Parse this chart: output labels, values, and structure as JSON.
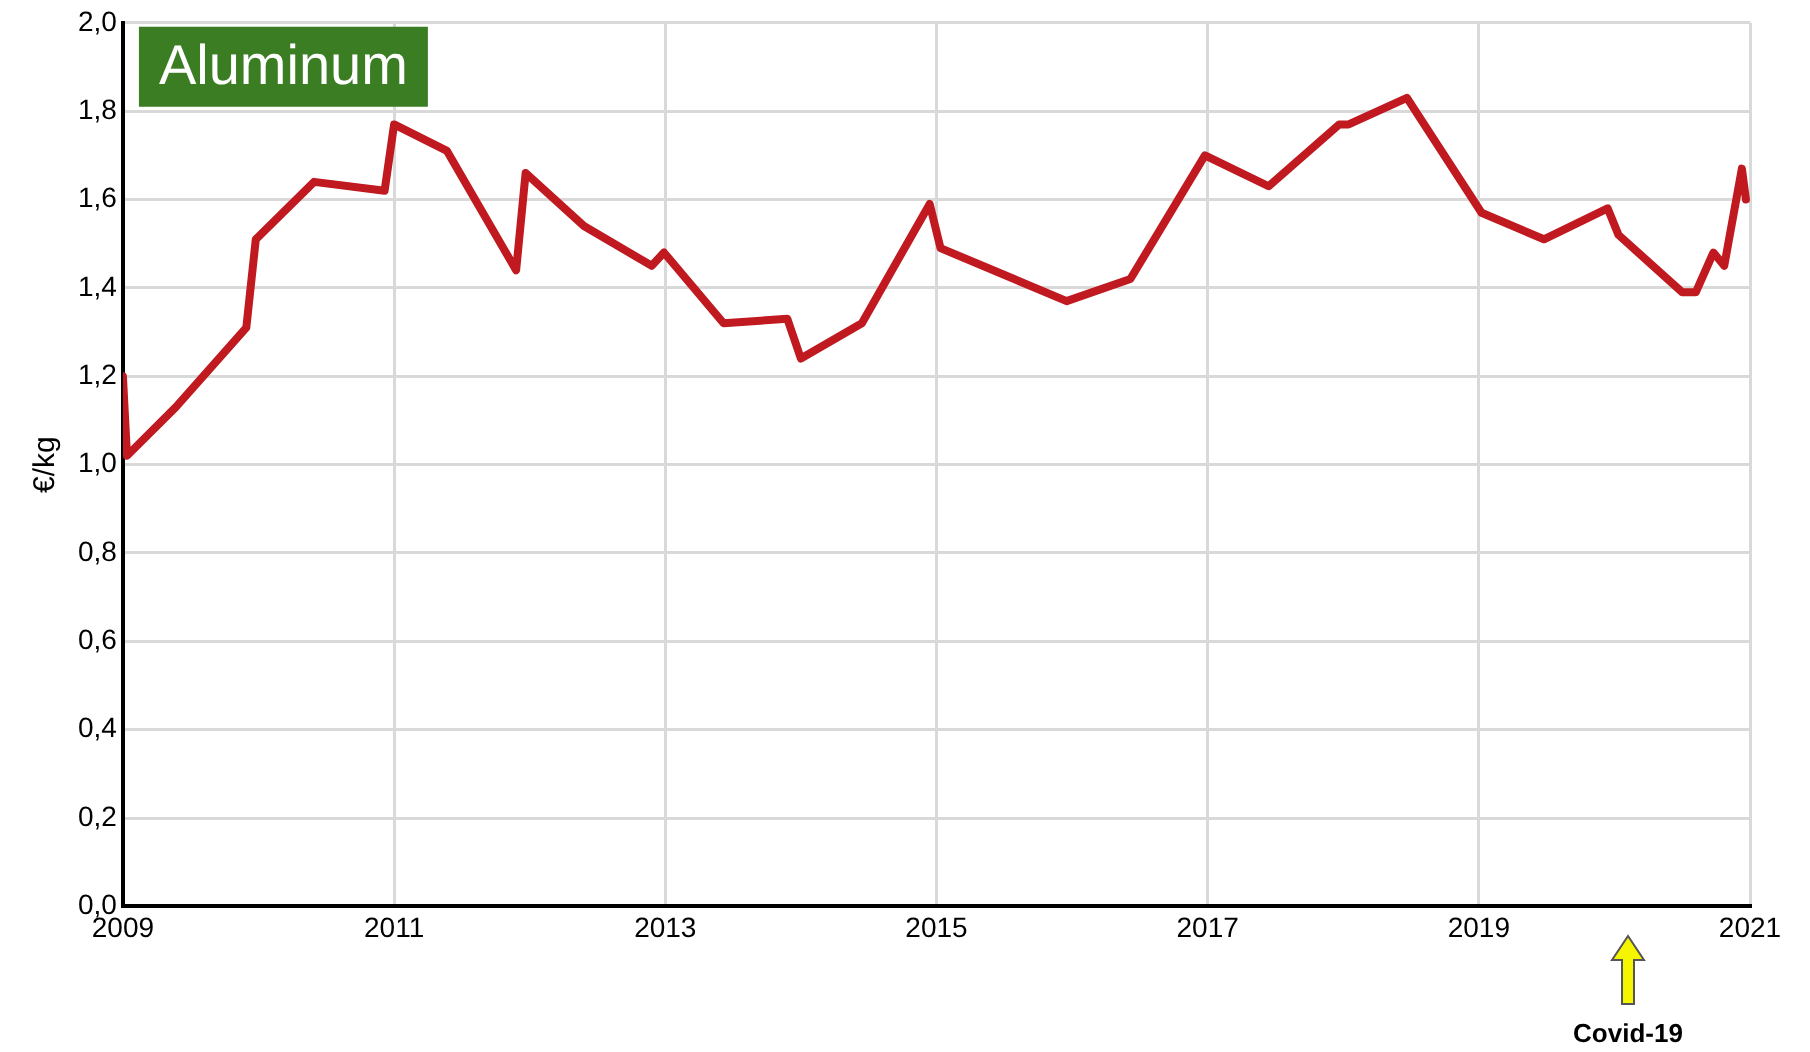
{
  "chart_data": {
    "type": "line",
    "title": "Aluminum",
    "ylabel": "€/kg",
    "annotations": [
      "Covid-19"
    ],
    "x": [
      2009.0,
      2009.03,
      2009.39,
      2009.91,
      2009.98,
      2010.41,
      2010.93,
      2011.0,
      2011.39,
      2011.9,
      2011.97,
      2012.4,
      2012.9,
      2012.99,
      2013.43,
      2013.9,
      2014.0,
      2014.45,
      2014.95,
      2015.03,
      2015.96,
      2016.43,
      2016.98,
      2017.45,
      2017.97,
      2018.04,
      2018.47,
      2019.02,
      2019.48,
      2019.95,
      2020.03,
      2020.5,
      2020.6,
      2020.73,
      2020.81,
      2020.94,
      2020.97
    ],
    "series": [
      {
        "color": "#c0191f",
        "values": [
          1.2,
          1.02,
          1.13,
          1.31,
          1.51,
          1.64,
          1.62,
          1.77,
          1.71,
          1.44,
          1.66,
          1.54,
          1.45,
          1.48,
          1.32,
          1.33,
          1.24,
          1.32,
          1.59,
          1.49,
          1.37,
          1.42,
          1.7,
          1.63,
          1.77,
          1.77,
          1.83,
          1.57,
          1.51,
          1.58,
          1.52,
          1.39,
          1.39,
          1.48,
          1.45,
          1.67,
          1.6
        ]
      }
    ],
    "xlim": [
      2009,
      2021
    ],
    "xticks": [
      2009,
      2011,
      2013,
      2015,
      2017,
      2019,
      2021
    ],
    "ylim": [
      0,
      2
    ],
    "yticks": [
      {
        "value": 0,
        "label": "0,0"
      },
      {
        "value": 0.2,
        "label": "0,2"
      },
      {
        "value": 0.4,
        "label": "0,4"
      },
      {
        "value": 0.6,
        "label": "0,6"
      },
      {
        "value": 0.8,
        "label": "0,8"
      },
      {
        "value": 1,
        "label": "1,0"
      },
      {
        "value": 1.2,
        "label": "1,2"
      },
      {
        "value": 1.4,
        "label": "1,4"
      },
      {
        "value": 1.6,
        "label": "1,6"
      },
      {
        "value": 1.8,
        "label": "1,8"
      },
      {
        "value": 2,
        "label": "2,0"
      }
    ],
    "grid": true,
    "marker": "none",
    "line_style": "solid",
    "legend": false
  }
}
